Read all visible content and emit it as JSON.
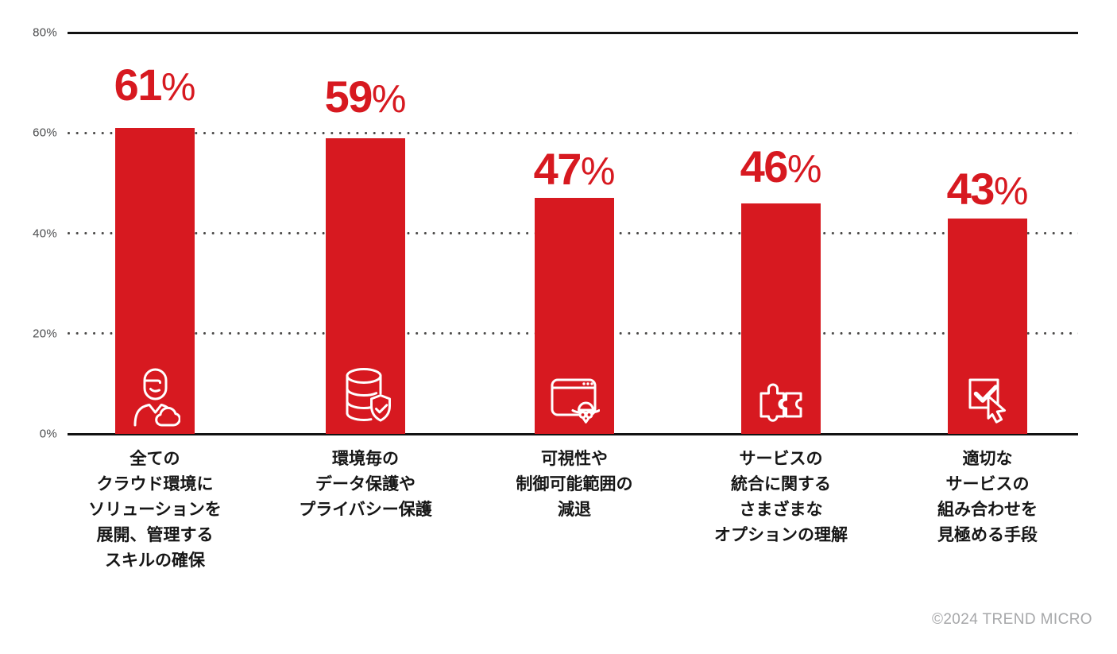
{
  "chart_data": {
    "type": "bar",
    "categories": [
      "全ての\nクラウド環境に\nソリューションを\n展開、管理する\nスキルの確保",
      "環境毎の\nデータ保護や\nプライバシー保護",
      "可視性や\n制御可能範囲の\n減退",
      "サービスの\n統合に関する\nさまざまな\nオプションの理解",
      "適切な\nサービスの\n組み合わせを\n見極める手段"
    ],
    "values": [
      61,
      59,
      47,
      46,
      43
    ],
    "unit": "%",
    "icons": [
      "person-cloud-icon",
      "database-shield-icon",
      "browser-spy-icon",
      "puzzle-pieces-icon",
      "checkbox-cursor-icon"
    ],
    "y_ticks": [
      "80%",
      "60%",
      "40%",
      "20%",
      "0%"
    ],
    "y_tick_values": [
      80,
      60,
      40,
      20,
      0
    ],
    "ylim": [
      0,
      80
    ],
    "gridlines": {
      "solid_at": [
        80,
        0
      ],
      "dotted_at": [
        60,
        40,
        20
      ]
    },
    "legend": "none",
    "title": "",
    "xlabel": "",
    "ylabel": "",
    "bar_color": "#d71920",
    "value_label_color": "#d71920",
    "category_label_color": "#161616",
    "axis_line_color": "#121212",
    "tick_label_color": "#4b4c4e"
  },
  "footer": {
    "copyright": "©2024 TREND MICRO"
  }
}
